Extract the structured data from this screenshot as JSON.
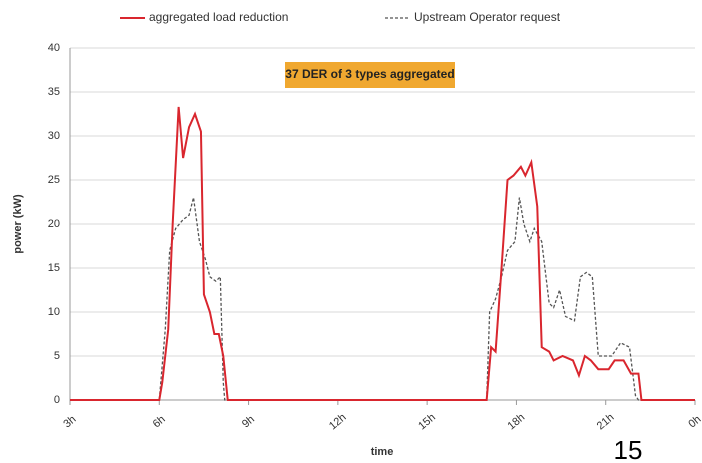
{
  "chart_data": {
    "type": "line",
    "annotation": "37 DER of  3 types aggregated",
    "page_number": "15",
    "xlabel": "time",
    "ylabel": "power (kW)",
    "xlim": [
      3,
      24
    ],
    "xticks": [
      {
        "value": 3,
        "label": "3h"
      },
      {
        "value": 6,
        "label": "6h"
      },
      {
        "value": 9,
        "label": "9h"
      },
      {
        "value": 12,
        "label": "12h"
      },
      {
        "value": 15,
        "label": "15h"
      },
      {
        "value": 18,
        "label": "18h"
      },
      {
        "value": 21,
        "label": "21h"
      },
      {
        "value": 24,
        "label": "0h"
      }
    ],
    "ylim": [
      0,
      40
    ],
    "yticks": [
      0,
      5,
      10,
      15,
      20,
      25,
      30,
      35,
      40
    ],
    "grid": true,
    "legend": "top",
    "series": [
      {
        "name": "aggregated load reduction",
        "color": "#d9262e",
        "style": "solid",
        "x": [
          3,
          6,
          6.1,
          6.3,
          6.45,
          6.65,
          6.8,
          7.0,
          7.2,
          7.4,
          7.5,
          7.7,
          7.85,
          8.0,
          8.15,
          8.3,
          17.0,
          17.15,
          17.3,
          17.5,
          17.7,
          17.9,
          18.15,
          18.3,
          18.5,
          18.7,
          18.85,
          19.1,
          19.25,
          19.55,
          19.9,
          20.1,
          20.3,
          20.5,
          20.75,
          21.1,
          21.3,
          21.6,
          21.85,
          22.1,
          22.2,
          24
        ],
        "values": [
          0,
          0,
          2,
          8,
          20,
          33.3,
          27.5,
          31,
          32.5,
          30.5,
          12,
          10,
          7.5,
          7.5,
          5,
          0,
          0,
          6,
          5.5,
          15,
          25,
          25.5,
          26.5,
          25.5,
          27,
          22,
          6,
          5.5,
          4.5,
          5,
          4.5,
          2.8,
          5,
          4.5,
          3.5,
          3.5,
          4.5,
          4.5,
          3,
          3,
          0,
          0
        ]
      },
      {
        "name": "Upstream Operator request",
        "color": "#555555",
        "style": "dashed",
        "x": [
          3,
          6.0,
          6.2,
          6.35,
          6.55,
          6.8,
          7.0,
          7.15,
          7.35,
          7.55,
          7.7,
          7.9,
          8.05,
          8.15,
          8.2,
          17.0,
          17.1,
          17.3,
          17.5,
          17.7,
          17.95,
          18.1,
          18.25,
          18.45,
          18.6,
          18.85,
          19.1,
          19.25,
          19.45,
          19.65,
          19.95,
          20.15,
          20.35,
          20.55,
          20.75,
          21.2,
          21.5,
          21.8,
          22.0,
          22.1,
          24
        ],
        "values": [
          0,
          0,
          8,
          17,
          19.5,
          20.5,
          21,
          23,
          18,
          16,
          14,
          13.5,
          14,
          2,
          0,
          0,
          10,
          11.5,
          14,
          17,
          18,
          23,
          20,
          18,
          19.5,
          18,
          11,
          10.5,
          12.5,
          9.5,
          9,
          14,
          14.5,
          14,
          5,
          5,
          6.5,
          6,
          0.5,
          0,
          0
        ]
      }
    ]
  }
}
